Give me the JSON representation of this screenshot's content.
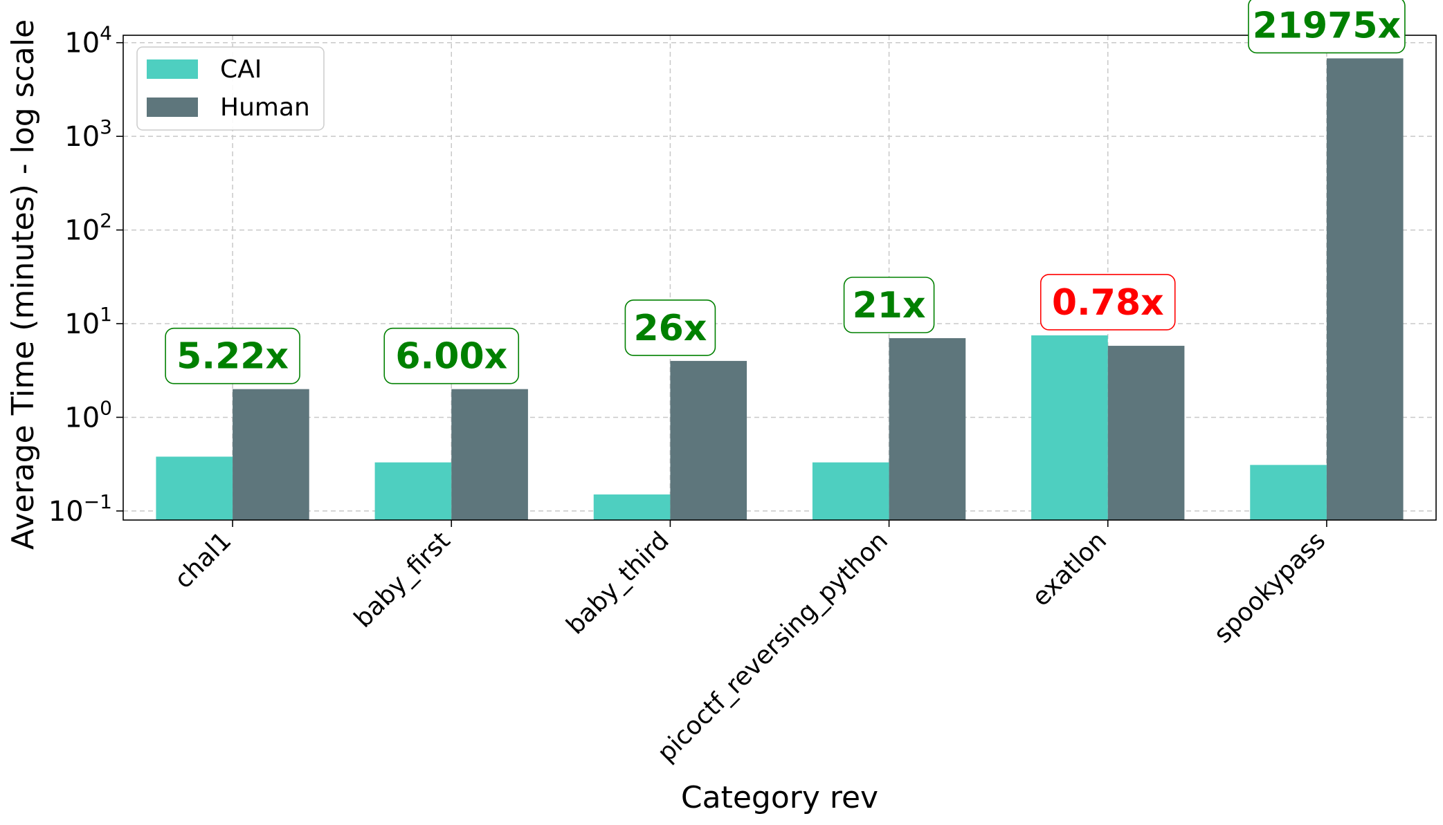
{
  "chart_data": {
    "type": "bar",
    "categories": [
      "chal1",
      "baby_first",
      "baby_third",
      "picoctf_reversing_python",
      "exatlon",
      "spookypass"
    ],
    "series": [
      {
        "name": "CAI",
        "values": [
          0.38,
          0.33,
          0.15,
          0.33,
          7.5,
          0.31
        ],
        "color": "#4ecfc0"
      },
      {
        "name": "Human",
        "values": [
          2.0,
          2.0,
          4.0,
          7.0,
          5.8,
          6800
        ],
        "color": "#5e767c"
      }
    ],
    "ratio_labels": [
      {
        "text": "5.22x",
        "color": "#008000"
      },
      {
        "text": "6.00x",
        "color": "#008000"
      },
      {
        "text": "26x",
        "color": "#008000"
      },
      {
        "text": "21x",
        "color": "#008000"
      },
      {
        "text": "0.78x",
        "color": "#ff0000"
      },
      {
        "text": "21975x",
        "color": "#008000"
      }
    ],
    "xlabel": "Category rev",
    "ylabel": "Average Time (minutes) - log scale",
    "yscale": "log",
    "ylim": [
      0.08,
      12000
    ],
    "yticks": [
      {
        "value": 0.1,
        "base": "10",
        "exp": "−1"
      },
      {
        "value": 1,
        "base": "10",
        "exp": "0"
      },
      {
        "value": 10,
        "base": "10",
        "exp": "1"
      },
      {
        "value": 100,
        "base": "10",
        "exp": "2"
      },
      {
        "value": 1000,
        "base": "10",
        "exp": "3"
      },
      {
        "value": 10000,
        "base": "10",
        "exp": "4"
      }
    ],
    "grid": true,
    "legend_position": "top-left"
  }
}
